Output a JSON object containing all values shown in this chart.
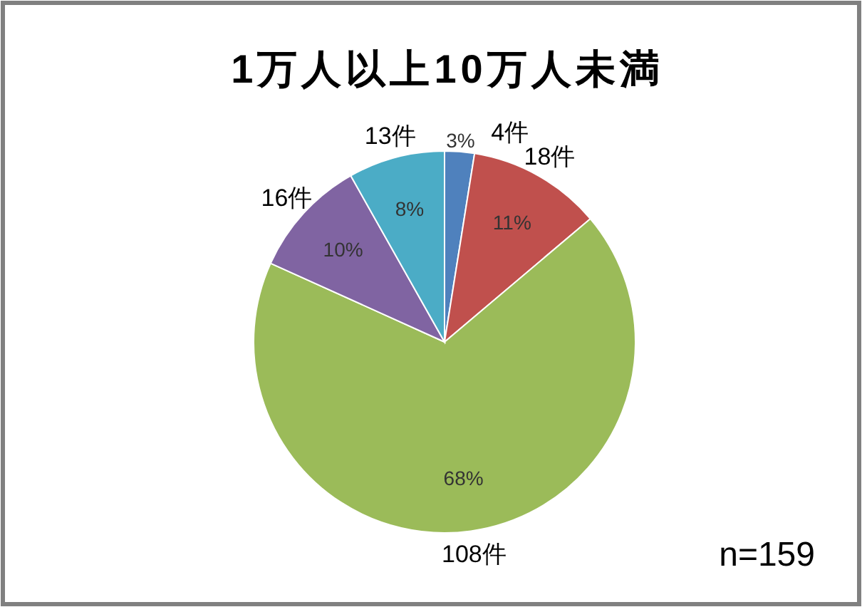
{
  "chart_data": {
    "type": "pie",
    "title": "1万人以上10万人未満",
    "categories": [
      null,
      null,
      null,
      null,
      null
    ],
    "values": [
      4,
      18,
      108,
      16,
      13
    ],
    "value_labels": [
      "4件",
      "18件",
      "108件",
      "16件",
      "13件"
    ],
    "colors": [
      "#4f81bd",
      "#c0504d",
      "#9bbb59",
      "#8064a2",
      "#4bacc6"
    ],
    "annotations": [
      "3%",
      "11%",
      "68%",
      "10%",
      "8%",
      "n=159"
    ]
  }
}
